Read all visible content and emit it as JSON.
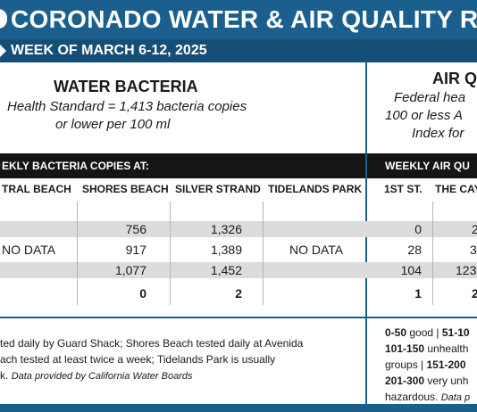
{
  "header": {
    "title": "CORONADO WATER & AIR QUALITY R",
    "week": "WEEK OF MARCH 6-12, 2025"
  },
  "water": {
    "heading": "WATER BACTERIA",
    "standard_line1": "Health Standard  = 1,413 bacteria copies",
    "standard_line2": "or lower per 100 ml",
    "bar_label": "EKLY BACTERIA COPIES AT:",
    "columns": [
      "TRAL BEACH",
      "SHORES BEACH",
      "SILVER STRAND",
      "TIDELANDS PARK"
    ],
    "rows": [
      [
        "",
        "756",
        "1,326",
        ""
      ],
      [
        "NO DATA",
        "917",
        "1,389",
        "NO DATA"
      ],
      [
        "",
        "1,077",
        "1,452",
        ""
      ],
      [
        "",
        "0",
        "2",
        ""
      ]
    ],
    "footnote_line1": "ted daily by Guard Shack; Shores Beach tested daily at Avenida",
    "footnote_line2": "ach tested at least twice a week; Tidelands Park is usually",
    "footnote_line3": "k.",
    "footnote_source": "Data provided by California Water Boards"
  },
  "air": {
    "heading": "AIR Q",
    "standard_line1": "Federal hea",
    "standard_line2": "100 or less A",
    "standard_line3": "Index for",
    "bar_label": "WEEKLY AIR QU",
    "columns": [
      "1ST ST.",
      "THE CAY"
    ],
    "rows": [
      [
        "0",
        "2"
      ],
      [
        "28",
        "3"
      ],
      [
        "104",
        "123"
      ],
      [
        "1",
        "2"
      ]
    ],
    "legend": {
      "l1_bold": "0-50",
      "l1_rest": " good | ",
      "l1_bold2": "51-10",
      "l2_bold": "101-150",
      "l2_rest": " unhealth",
      "l3_rest": "groups | ",
      "l3_bold": "151-200",
      "l4_bold": "201-300",
      "l4_rest": " very unh",
      "l5_rest": "hazardous.",
      "l5_src": "Data p"
    }
  },
  "colors": {
    "brand_blue": "#1b5f8f",
    "bar_black": "#151515",
    "row_shade": "#dcdcdc"
  }
}
